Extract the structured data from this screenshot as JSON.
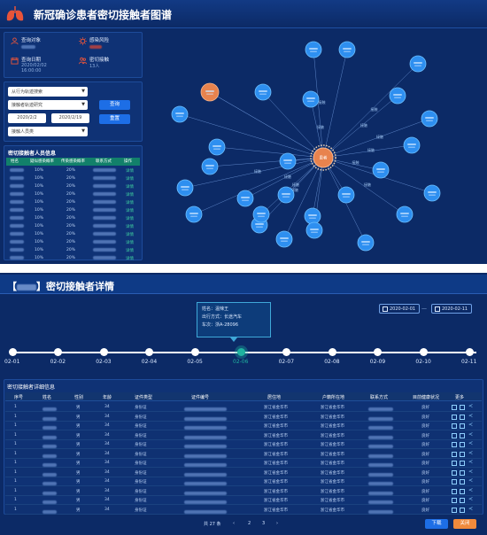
{
  "top": {
    "title": "新冠确诊患者密切接触者图谱",
    "info": [
      {
        "label": "查询对象",
        "icon": "user-icon"
      },
      {
        "label": "感染风险",
        "icon": "virus-icon"
      },
      {
        "label": "查询日期",
        "value": "2020/02/02 16:00:00",
        "icon": "calendar-icon"
      },
      {
        "label": "密切接触",
        "value": "13人",
        "icon": "people-icon"
      }
    ],
    "filters": {
      "select1": "从行为轨迹搜索",
      "select2": "接触者轨迹研究",
      "date_start": "2020/2/2",
      "date_end": "2020/2/19",
      "select3": "接触人员类",
      "query_button": "查询",
      "reset_button": "重置"
    },
    "list": {
      "title": "密切接触者人员信息",
      "headers": [
        "姓名",
        "疑似感染概率",
        "传染感染概率",
        "联系方式",
        "操作"
      ],
      "rows": [
        {
          "p1": "10%",
          "p2": "20%",
          "op": "详情"
        },
        {
          "p1": "10%",
          "p2": "20%",
          "op": "详情"
        },
        {
          "p1": "10%",
          "p2": "20%",
          "op": "详情"
        },
        {
          "p1": "10%",
          "p2": "20%",
          "op": "详情"
        },
        {
          "p1": "10%",
          "p2": "20%",
          "op": "详情"
        },
        {
          "p1": "10%",
          "p2": "20%",
          "op": "详情"
        },
        {
          "p1": "10%",
          "p2": "20%",
          "op": "详情"
        },
        {
          "p1": "10%",
          "p2": "20%",
          "op": "详情"
        },
        {
          "p1": "10%",
          "p2": "20%",
          "op": "详情"
        },
        {
          "p1": "10%",
          "p2": "20%",
          "op": "详情"
        },
        {
          "p1": "10%",
          "p2": "20%",
          "op": "详情"
        },
        {
          "p1": "10%",
          "p2": "20%",
          "op": "详情"
        }
      ]
    },
    "graph": {
      "center_label": "患者",
      "edge_label": "接触"
    }
  },
  "bottom": {
    "title_suffix": "密切接触者详情",
    "date_start": "2020-02-01",
    "date_end": "2020-02-11",
    "tooltip": {
      "line1": "姓名：温辣王",
      "line2": "出行方式：长途汽车",
      "line3": "车次：浙A-28096"
    },
    "timeline": [
      "02-01",
      "02-02",
      "02-03",
      "02-04",
      "02-05",
      "02-06",
      "02-07",
      "02-08",
      "02-09",
      "02-10",
      "02-11"
    ],
    "active_index": 5,
    "table_title": "密切接触者详细信息",
    "headers": [
      "序号",
      "姓名",
      "性别",
      "年龄",
      "证件类型",
      "证件编号",
      "居住地",
      "户籍所在地",
      "联系方式",
      "目前健康状况",
      "更多"
    ],
    "rows": [
      {
        "no": "1",
        "sex": "男",
        "age": "34",
        "idtype": "身份证",
        "addr": "浙江省金华市",
        "reg": "浙江省金华市",
        "health": "良好"
      },
      {
        "no": "1",
        "sex": "男",
        "age": "34",
        "idtype": "身份证",
        "addr": "浙江省金华市",
        "reg": "浙江省金华市",
        "health": "良好"
      },
      {
        "no": "1",
        "sex": "男",
        "age": "34",
        "idtype": "身份证",
        "addr": "浙江省金华市",
        "reg": "浙江省金华市",
        "health": "良好"
      },
      {
        "no": "1",
        "sex": "男",
        "age": "34",
        "idtype": "身份证",
        "addr": "浙江省金华市",
        "reg": "浙江省金华市",
        "health": "良好"
      },
      {
        "no": "1",
        "sex": "男",
        "age": "34",
        "idtype": "身份证",
        "addr": "浙江省金华市",
        "reg": "浙江省金华市",
        "health": "良好"
      },
      {
        "no": "1",
        "sex": "男",
        "age": "34",
        "idtype": "身份证",
        "addr": "浙江省金华市",
        "reg": "浙江省金华市",
        "health": "良好"
      },
      {
        "no": "1",
        "sex": "男",
        "age": "34",
        "idtype": "身份证",
        "addr": "浙江省金华市",
        "reg": "浙江省金华市",
        "health": "良好"
      },
      {
        "no": "1",
        "sex": "男",
        "age": "34",
        "idtype": "身份证",
        "addr": "浙江省金华市",
        "reg": "浙江省金华市",
        "health": "良好"
      },
      {
        "no": "1",
        "sex": "男",
        "age": "34",
        "idtype": "身份证",
        "addr": "浙江省金华市",
        "reg": "浙江省金华市",
        "health": "良好"
      },
      {
        "no": "1",
        "sex": "男",
        "age": "34",
        "idtype": "身份证",
        "addr": "浙江省金华市",
        "reg": "浙江省金华市",
        "health": "良好"
      },
      {
        "no": "1",
        "sex": "男",
        "age": "34",
        "idtype": "身份证",
        "addr": "浙江省金华市",
        "reg": "浙江省金华市",
        "health": "良好"
      },
      {
        "no": "1",
        "sex": "男",
        "age": "34",
        "idtype": "身份证",
        "addr": "浙江省金华市",
        "reg": "浙江省金华市",
        "health": "良好"
      }
    ],
    "pager": {
      "total": "共 27 条",
      "prev": "‹",
      "p2": "2",
      "p3": "3",
      "next": "›"
    },
    "download_button": "下载",
    "close_button": "关闭"
  }
}
